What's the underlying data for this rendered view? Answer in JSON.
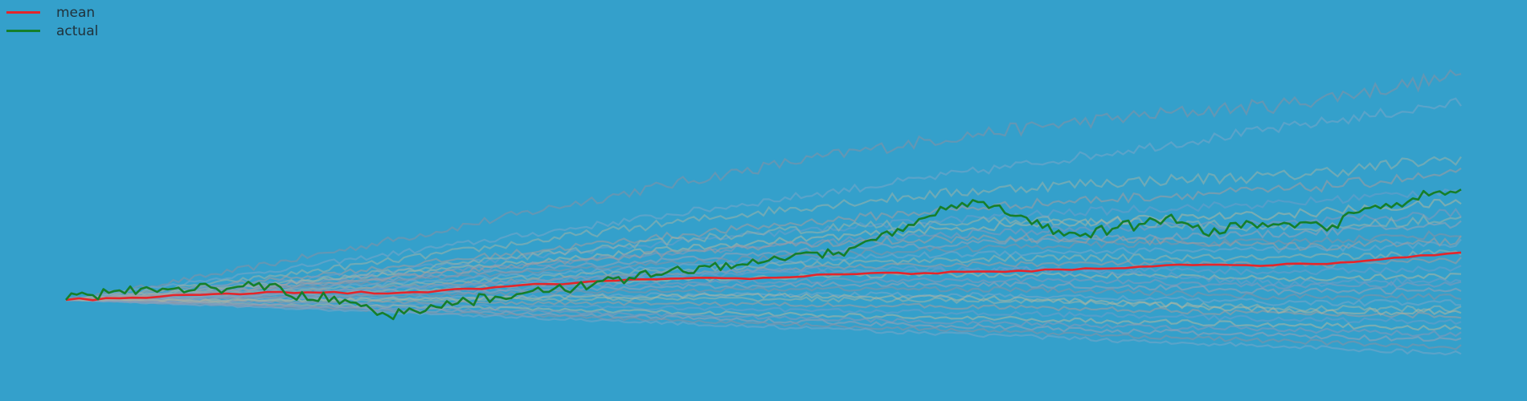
{
  "chart_data": {
    "type": "line",
    "title": "",
    "xlabel": "",
    "ylabel": "",
    "grid": false,
    "legend_position": "top-left",
    "colors": {
      "background": "#34a0cb",
      "mean": "#e5252a",
      "actual": "#157f2a",
      "simulation": "#8a9aa8"
    },
    "legend": [
      {
        "label": "mean",
        "color": "#e5252a"
      },
      {
        "label": "actual",
        "color": "#157f2a"
      }
    ],
    "xlim": [
      0,
      260
    ],
    "ylim": [
      0.45,
      2.8
    ],
    "series": [
      {
        "name": "mean",
        "x": [
          0,
          10,
          20,
          30,
          40,
          50,
          60,
          70,
          80,
          90,
          100,
          110,
          120,
          130,
          140,
          150,
          160,
          170,
          180,
          190,
          200,
          210,
          220,
          230,
          240,
          250,
          260
        ],
        "values": [
          1.0,
          1.01,
          1.03,
          1.04,
          1.05,
          1.05,
          1.04,
          1.06,
          1.08,
          1.1,
          1.12,
          1.13,
          1.14,
          1.14,
          1.16,
          1.17,
          1.17,
          1.18,
          1.18,
          1.2,
          1.21,
          1.22,
          1.22,
          1.23,
          1.24,
          1.27,
          1.3
        ]
      },
      {
        "name": "actual",
        "x": [
          0,
          5,
          10,
          15,
          20,
          25,
          30,
          35,
          40,
          45,
          50,
          55,
          60,
          65,
          70,
          75,
          80,
          85,
          90,
          95,
          100,
          105,
          110,
          115,
          120,
          125,
          130,
          135,
          140,
          145,
          150,
          155,
          160,
          165,
          170,
          175,
          180,
          185,
          190,
          195,
          200,
          205,
          210,
          215,
          220,
          225,
          230,
          235,
          240,
          245,
          250,
          255,
          260
        ],
        "values": [
          1.0,
          1.03,
          1.06,
          1.08,
          1.07,
          1.1,
          1.07,
          1.09,
          1.08,
          1.0,
          1.02,
          0.96,
          0.9,
          0.93,
          0.95,
          0.99,
          1.02,
          1.04,
          1.05,
          1.08,
          1.12,
          1.14,
          1.16,
          1.18,
          1.21,
          1.22,
          1.24,
          1.27,
          1.3,
          1.28,
          1.38,
          1.45,
          1.52,
          1.6,
          1.62,
          1.55,
          1.48,
          1.44,
          1.42,
          1.45,
          1.48,
          1.52,
          1.46,
          1.42,
          1.5,
          1.48,
          1.49,
          1.44,
          1.55,
          1.58,
          1.62,
          1.68,
          1.7
        ]
      }
    ],
    "simulations": [
      {
        "end": 2.42,
        "peak": 2.72,
        "vol": 0.05
      },
      {
        "end": 2.25,
        "peak": 2.25,
        "vol": 0.035
      },
      {
        "end": 1.9,
        "peak": 2.15,
        "vol": 0.04
      },
      {
        "end": 1.8,
        "peak": 1.95,
        "vol": 0.035
      },
      {
        "end": 1.7,
        "peak": 1.85,
        "vol": 0.03
      },
      {
        "end": 1.62,
        "peak": 1.75,
        "vol": 0.03
      },
      {
        "end": 1.55,
        "peak": 1.7,
        "vol": 0.03
      },
      {
        "end": 1.48,
        "peak": 1.6,
        "vol": 0.025
      },
      {
        "end": 1.42,
        "peak": 1.55,
        "vol": 0.025
      },
      {
        "end": 1.36,
        "peak": 1.5,
        "vol": 0.025
      },
      {
        "end": 1.3,
        "peak": 1.45,
        "vol": 0.025
      },
      {
        "end": 1.25,
        "peak": 1.4,
        "vol": 0.02
      },
      {
        "end": 1.2,
        "peak": 1.35,
        "vol": 0.02
      },
      {
        "end": 1.15,
        "peak": 1.3,
        "vol": 0.02
      },
      {
        "end": 1.1,
        "peak": 1.25,
        "vol": 0.02
      },
      {
        "end": 1.06,
        "peak": 1.2,
        "vol": 0.02
      },
      {
        "end": 1.02,
        "peak": 1.15,
        "vol": 0.02
      },
      {
        "end": 0.98,
        "peak": 1.1,
        "vol": 0.02
      },
      {
        "end": 0.94,
        "peak": 1.08,
        "vol": 0.02
      },
      {
        "end": 0.9,
        "peak": 1.05,
        "vol": 0.018
      },
      {
        "end": 0.86,
        "peak": 1.02,
        "vol": 0.018
      },
      {
        "end": 0.82,
        "peak": 1.0,
        "vol": 0.018
      },
      {
        "end": 0.78,
        "peak": 1.0,
        "vol": 0.018
      },
      {
        "end": 0.74,
        "peak": 1.0,
        "vol": 0.018
      },
      {
        "end": 0.7,
        "peak": 1.0,
        "vol": 0.016
      },
      {
        "end": 0.66,
        "peak": 1.0,
        "vol": 0.016
      },
      {
        "end": 1.52,
        "peak": 1.9,
        "vol": 0.035
      },
      {
        "end": 1.38,
        "peak": 1.72,
        "vol": 0.03
      },
      {
        "end": 1.12,
        "peak": 1.4,
        "vol": 0.025
      },
      {
        "end": 0.92,
        "peak": 1.15,
        "vol": 0.02
      }
    ]
  }
}
